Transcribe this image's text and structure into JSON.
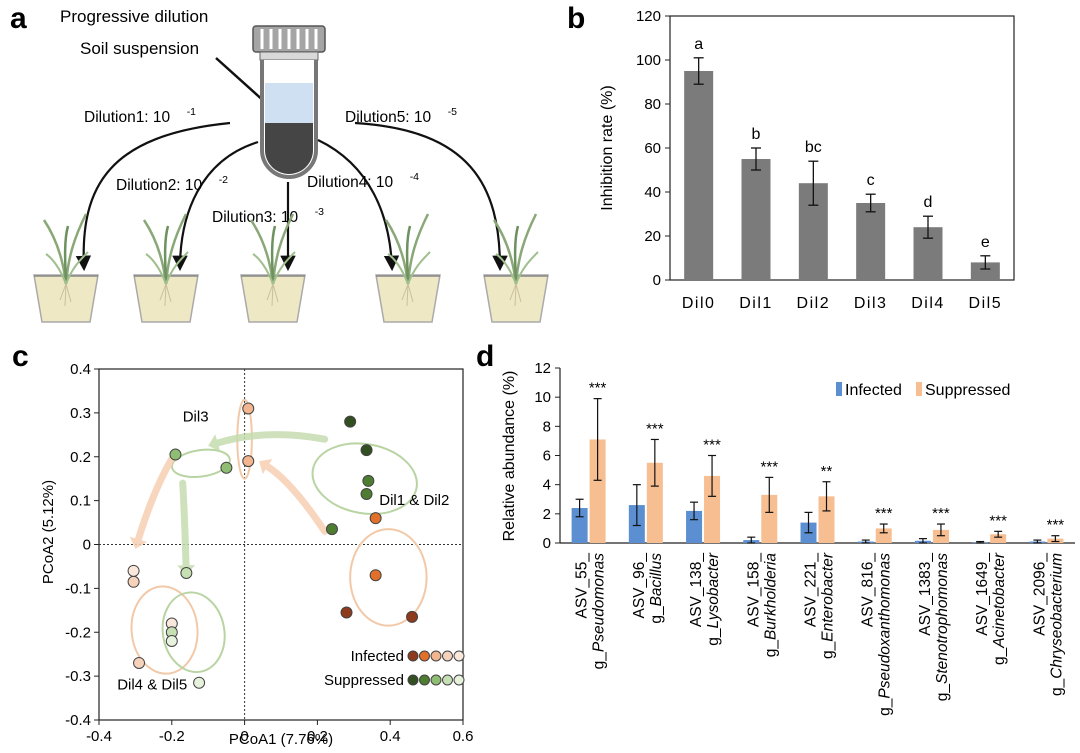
{
  "panel_labels": {
    "a": "a",
    "b": "b",
    "c": "c",
    "d": "d"
  },
  "panel_a": {
    "title": "Progressive dilution",
    "suspension_label": "Soil suspension",
    "dilutions": [
      {
        "name": "Dilution1: 10",
        "exp": "-1"
      },
      {
        "name": "Dilution2: 10",
        "exp": "-2"
      },
      {
        "name": "Dilution3: 10",
        "exp": "-3"
      },
      {
        "name": "Dilution4: 10",
        "exp": "-4"
      },
      {
        "name": "Dilution5: 10",
        "exp": "-5"
      }
    ],
    "colors": {
      "liquid_top": "#cfe0f2",
      "sediment": "#454545",
      "cap": "#9a9a9a",
      "soil": "#efe8c4",
      "plant": "#8aa877"
    }
  },
  "chart_data": [
    {
      "type": "bar",
      "id": "b",
      "ylabel": "Inhibition rate (%)",
      "xlabel": "",
      "categories": [
        "Dil0",
        "Dil1",
        "Dil2",
        "Dil3",
        "Dil4",
        "Dil5"
      ],
      "values": [
        95,
        55,
        44,
        35,
        24,
        8
      ],
      "errors": [
        6,
        5,
        10,
        4,
        5,
        3
      ],
      "letters": [
        "a",
        "b",
        "bc",
        "c",
        "d",
        "e"
      ],
      "ylim": [
        0,
        120
      ],
      "yticks": [
        0,
        20,
        40,
        60,
        80,
        100,
        120
      ],
      "colors": {
        "bar": "#7b7b7b"
      }
    },
    {
      "type": "scatter",
      "id": "c",
      "xlabel": "PCoA1 (7.76%)",
      "ylabel": "PCoA2 (5.12%)",
      "xlim": [
        -0.4,
        0.6
      ],
      "ylim": [
        -0.4,
        0.4
      ],
      "xticks": [
        -0.4,
        -0.2,
        0,
        0.2,
        0.4,
        0.6
      ],
      "yticks": [
        -0.4,
        -0.3,
        -0.2,
        -0.1,
        0,
        0.1,
        0.2,
        0.3,
        0.4
      ],
      "xtick_labels": [
        "-0.4",
        "-0.2",
        "0",
        "0.2",
        "0.4",
        "0.6"
      ],
      "ytick_labels": [
        "-0.4",
        "-0.3",
        "-0.2",
        "-0.1",
        "0",
        "0.1",
        "0.2",
        "0.3",
        "0.4"
      ],
      "group_labels": [
        {
          "text": "Dil3",
          "x": -0.17,
          "y": 0.28
        },
        {
          "text": "Dil1 & Dil2",
          "x": 0.37,
          "y": 0.09
        },
        {
          "text": "Dil4 & Dil5",
          "x": -0.35,
          "y": -0.33
        }
      ],
      "ellipses": [
        {
          "group": "Dil0 Suppressed",
          "cx": 0.33,
          "cy": 0.15,
          "rx": 0.095,
          "ry": 0.12,
          "rot": 100,
          "color": "#b9d4a3"
        },
        {
          "group": "Dil0 Infected",
          "cx": 0.395,
          "cy": -0.075,
          "rx": 0.105,
          "ry": 0.11,
          "rot": 0,
          "color": "#f2c9a8"
        },
        {
          "group": "Dil1 Infected",
          "cx": 0.0,
          "cy": 0.24,
          "rx": 0.02,
          "ry": 0.09,
          "rot": 0,
          "color": "#f2c9a8"
        },
        {
          "group": "Dil1 Suppressed",
          "cx": -0.12,
          "cy": 0.185,
          "rx": 0.08,
          "ry": 0.03,
          "rot": -8,
          "color": "#b9d4a3"
        },
        {
          "group": "Dil4 Infected",
          "cx": -0.22,
          "cy": -0.195,
          "rx": 0.12,
          "ry": 0.075,
          "rot": 85,
          "color": "#f2c9a8"
        },
        {
          "group": "Dil4 Suppressed",
          "cx": -0.14,
          "cy": -0.2,
          "rx": 0.11,
          "ry": 0.07,
          "rot": 80,
          "color": "#b9d4a3"
        }
      ],
      "arrows": [
        {
          "from": [
            0.22,
            0.24
          ],
          "to": [
            -0.1,
            0.225
          ],
          "color": "#c5dcb0"
        },
        {
          "from": [
            0.22,
            0.03
          ],
          "to": [
            0.04,
            0.19
          ],
          "color": "#f7cfb3"
        },
        {
          "from": [
            -0.2,
            0.195
          ],
          "to": [
            -0.3,
            -0.01
          ],
          "color": "#f7cfb3"
        },
        {
          "from": [
            -0.17,
            0.14
          ],
          "to": [
            -0.16,
            -0.07
          ],
          "color": "#c5dcb0"
        }
      ],
      "series": [
        {
          "name": "Infected",
          "group": "Dil0",
          "color": "#8e3a1c",
          "points": [
            [
              0.28,
              -0.155
            ],
            [
              0.46,
              -0.165
            ]
          ]
        },
        {
          "name": "Infected",
          "group": "Dil1",
          "color": "#e0702a",
          "points": [
            [
              0.36,
              0.06
            ],
            [
              0.36,
              -0.07
            ]
          ]
        },
        {
          "name": "Infected",
          "group": "Dil3",
          "color": "#f3b58f",
          "points": [
            [
              0.01,
              0.31
            ],
            [
              0.01,
              0.19
            ]
          ]
        },
        {
          "name": "Infected",
          "group": "Dil4",
          "color": "#f7d2bb",
          "points": [
            [
              -0.29,
              -0.27
            ],
            [
              -0.305,
              -0.085
            ]
          ]
        },
        {
          "name": "Infected",
          "group": "Dil5",
          "color": "#fbe8dc",
          "points": [
            [
              -0.305,
              -0.06
            ],
            [
              -0.2,
              -0.18
            ]
          ]
        },
        {
          "name": "Suppressed",
          "group": "Dil0",
          "color": "#324f22",
          "points": [
            [
              0.29,
              0.28
            ],
            [
              0.335,
              0.215
            ]
          ]
        },
        {
          "name": "Suppressed",
          "group": "Dil1",
          "color": "#4e7d31",
          "points": [
            [
              0.34,
              0.145
            ],
            [
              0.335,
              0.115
            ],
            [
              0.24,
              0.035
            ]
          ]
        },
        {
          "name": "Suppressed",
          "group": "Dil3",
          "color": "#8fbd73",
          "points": [
            [
              -0.19,
              0.205
            ],
            [
              -0.05,
              0.175
            ]
          ]
        },
        {
          "name": "Suppressed",
          "group": "Dil4",
          "color": "#c6e0b4",
          "points": [
            [
              -0.16,
              -0.065
            ],
            [
              -0.2,
              -0.2
            ]
          ]
        },
        {
          "name": "Suppressed",
          "group": "Dil5",
          "color": "#e6f2dc",
          "points": [
            [
              -0.2,
              -0.22
            ],
            [
              -0.125,
              -0.315
            ]
          ]
        }
      ],
      "legend": {
        "position": "bottom-right",
        "entries": [
          {
            "label": "Infected",
            "colors": [
              "#8e3a1c",
              "#e0702a",
              "#f3b58f",
              "#f7d2bb",
              "#fbe8dc"
            ]
          },
          {
            "label": "Suppressed",
            "colors": [
              "#324f22",
              "#4e7d31",
              "#8fbd73",
              "#c6e0b4",
              "#e6f2dc"
            ]
          }
        ]
      }
    },
    {
      "type": "bar",
      "id": "d",
      "ylabel": "Relative abundance (%)",
      "xlabel": "",
      "ylim": [
        0,
        12
      ],
      "yticks": [
        0,
        2,
        4,
        6,
        8,
        10,
        12
      ],
      "categories": [
        {
          "asv": "ASV_55_",
          "genus": "Pseudomonas"
        },
        {
          "asv": "ASV_96_",
          "genus": "Bacillus"
        },
        {
          "asv": "ASV_138_",
          "genus": "Lysobacter"
        },
        {
          "asv": "ASV_158_",
          "genus": "Burkholderia"
        },
        {
          "asv": "ASV_221_",
          "genus": "Enterobacter"
        },
        {
          "asv": "ASV_816_",
          "genus": "Pseudoxanthomonas"
        },
        {
          "asv": "ASV_1383_",
          "genus": "Stenotrophomonas"
        },
        {
          "asv": "ASV_1649_",
          "genus": "Acinetobacter"
        },
        {
          "asv": "ASV_2096_",
          "genus": "Chryseobacterium"
        }
      ],
      "genus_prefix": "g_",
      "series": [
        {
          "name": "Infected",
          "color": "#5b8fd1",
          "values": [
            2.4,
            2.6,
            2.2,
            0.2,
            1.4,
            0.1,
            0.15,
            0.05,
            0.1
          ],
          "errors": [
            0.6,
            1.4,
            0.6,
            0.2,
            0.7,
            0.1,
            0.15,
            0.05,
            0.1
          ]
        },
        {
          "name": "Suppressed",
          "color": "#f7be92",
          "values": [
            7.1,
            5.5,
            4.6,
            3.3,
            3.2,
            1.0,
            0.9,
            0.6,
            0.3
          ],
          "errors": [
            2.8,
            1.6,
            1.4,
            1.2,
            1.0,
            0.3,
            0.4,
            0.2,
            0.2
          ]
        }
      ],
      "significance": [
        "***",
        "***",
        "***",
        "***",
        "**",
        "***",
        "***",
        "***",
        "***"
      ],
      "legend": {
        "position": "top-right"
      }
    }
  ]
}
